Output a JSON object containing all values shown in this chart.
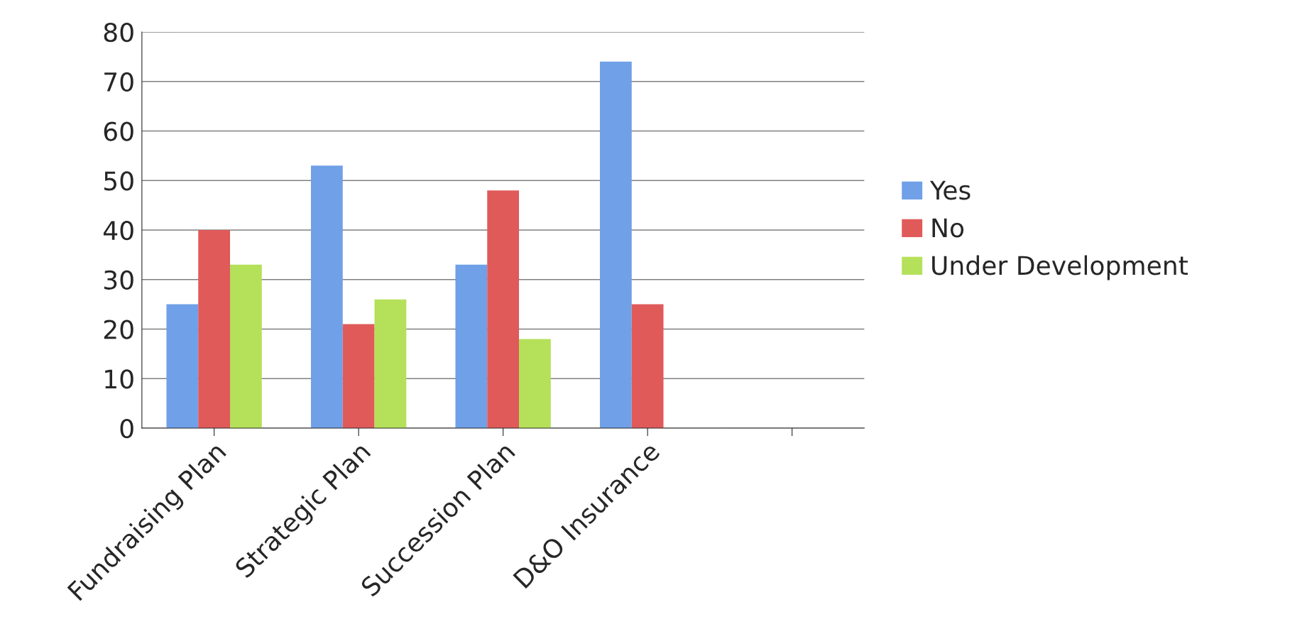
{
  "chart_data": {
    "type": "bar",
    "categories": [
      "Fundraising Plan",
      "Strategic Plan",
      "Succession Plan",
      "D&O Insurance",
      null
    ],
    "series": [
      {
        "name": "Yes",
        "color": "#6fa0e8",
        "values": [
          25,
          53,
          33,
          74,
          null
        ]
      },
      {
        "name": "No",
        "color": "#e05a5a",
        "values": [
          40,
          21,
          48,
          25,
          null
        ]
      },
      {
        "name": "Under Development",
        "color": "#b5e05a",
        "values": [
          33,
          26,
          18,
          0,
          null
        ]
      }
    ],
    "ylim": [
      0,
      80
    ],
    "yticks": [
      0,
      10,
      20,
      30,
      40,
      50,
      60,
      70,
      80
    ],
    "grid": "y",
    "legend": "right"
  }
}
